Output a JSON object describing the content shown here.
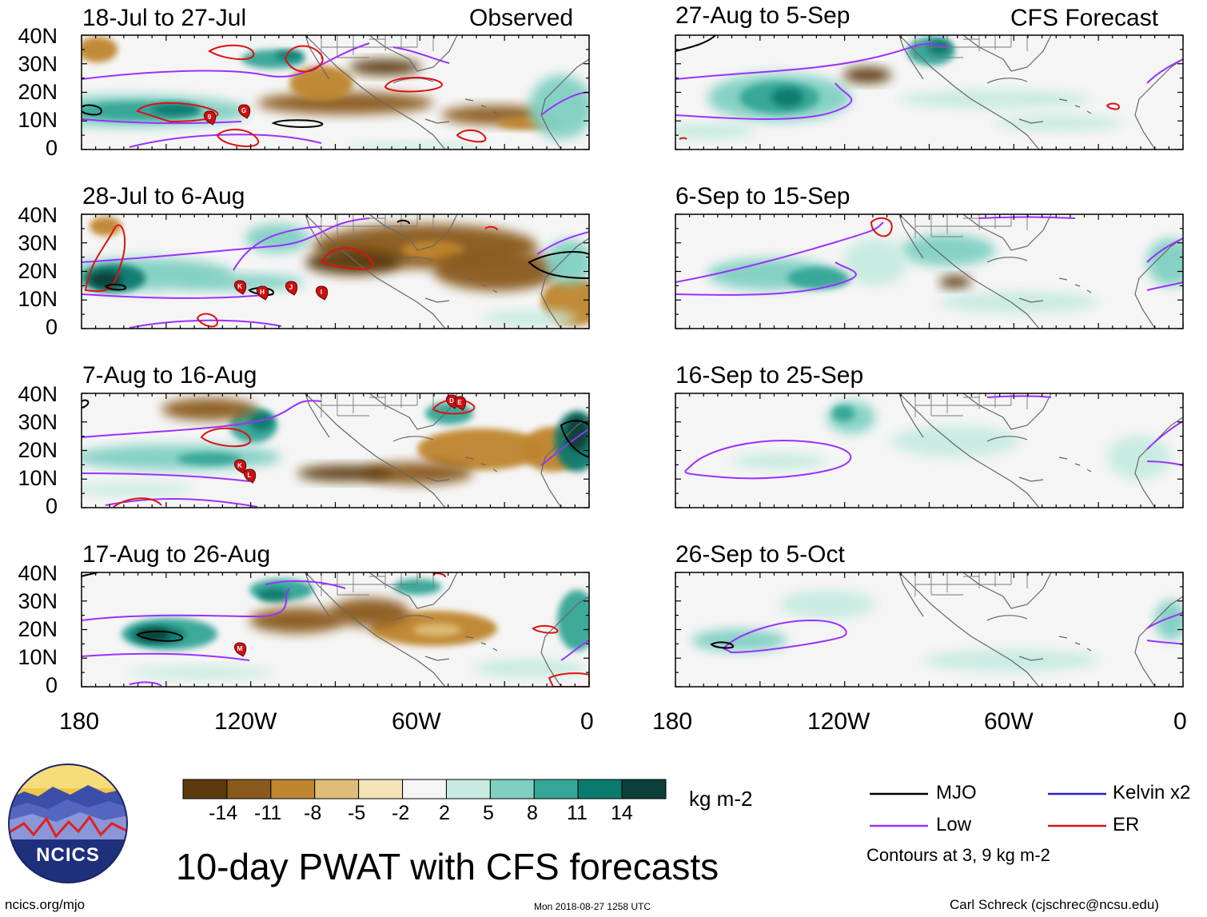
{
  "figure_title": "10-day PWAT with CFS forecasts",
  "column_headers": {
    "observed": "Observed",
    "forecast": "CFS Forecast"
  },
  "panels": [
    {
      "period": "18-Jul to 27-Jul",
      "column": "observed"
    },
    {
      "period": "28-Jul to 6-Aug",
      "column": "observed"
    },
    {
      "period": "7-Aug to 16-Aug",
      "column": "observed"
    },
    {
      "period": "17-Aug to 26-Aug",
      "column": "observed"
    },
    {
      "period": "27-Aug to 5-Sep",
      "column": "forecast"
    },
    {
      "period": "6-Sep to 15-Sep",
      "column": "forecast"
    },
    {
      "period": "16-Sep to 25-Sep",
      "column": "forecast"
    },
    {
      "period": "26-Sep to 5-Oct",
      "column": "forecast"
    }
  ],
  "lat_labels": [
    "40N",
    "30N",
    "20N",
    "10N",
    "0"
  ],
  "lon_labels": [
    "180",
    "120W",
    "60W",
    "0"
  ],
  "colorbar": {
    "unit": "kg m-2",
    "tick_labels": [
      "-14",
      "-11",
      "-8",
      "-5",
      "-2",
      "2",
      "5",
      "8",
      "11",
      "14"
    ],
    "colors": [
      "#5c3a0e",
      "#8a5a1c",
      "#bf852f",
      "#dfbd78",
      "#f5e3b8",
      "#f5f5f5",
      "#c7ebe1",
      "#80d0c2",
      "#35a597",
      "#0b7a6e",
      "#0a4038"
    ]
  },
  "legend": {
    "items": [
      {
        "label": "MJO",
        "color": "#000000"
      },
      {
        "label": "Low",
        "color": "#9b30ff"
      },
      {
        "label": "Kelvin x2",
        "color": "#2222cc"
      },
      {
        "label": "ER",
        "color": "#dd1111"
      }
    ],
    "contours_note": "Contours at 3, 9 kg m-2"
  },
  "storm_markers": [
    {
      "panel": 0,
      "letters": [
        "9",
        "G"
      ]
    },
    {
      "panel": 1,
      "letters": [
        "K",
        "H",
        "J",
        "I"
      ]
    },
    {
      "panel": 2,
      "letters": [
        "D",
        "E",
        "K",
        "L"
      ]
    },
    {
      "panel": 3,
      "letters": [
        "M"
      ]
    }
  ],
  "logo": {
    "text": "NCICS"
  },
  "footer": {
    "website": "ncics.org/mjo",
    "timestamp": "Mon 2018-08-27 1258 UTC",
    "author": "Carl Schreck (cjschrec@ncsu.edu)"
  }
}
